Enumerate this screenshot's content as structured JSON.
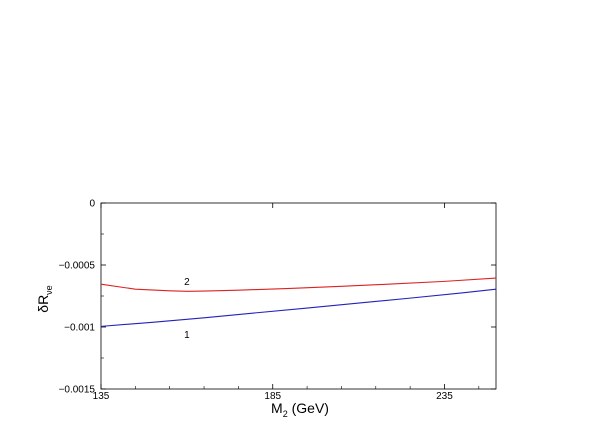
{
  "chart_data": {
    "type": "line",
    "title": "",
    "xlabel": "M",
    "xlabel_sub": "2",
    "xlabel_suffix": " (GeV)",
    "ylabel": "δR",
    "ylabel_sub": "νe",
    "xlim": [
      135,
      250
    ],
    "ylim": [
      -0.0015,
      0
    ],
    "grid": false,
    "x_ticks": [
      {
        "value": 135,
        "label": "135"
      },
      {
        "value": 185,
        "label": "185"
      },
      {
        "value": 235,
        "label": "235"
      }
    ],
    "y_ticks": [
      {
        "value": 0,
        "label": "0"
      },
      {
        "value": -0.0005,
        "label": "−0.0005"
      },
      {
        "value": -0.001,
        "label": "−0.001"
      },
      {
        "value": -0.0015,
        "label": "−0.0015"
      }
    ],
    "series": [
      {
        "label": "1",
        "label_at": [
          160,
          -0.00106
        ],
        "color": "#2222bb",
        "x": [
          135,
          150,
          165,
          180,
          195,
          210,
          225,
          240,
          250
        ],
        "y": [
          -0.000995,
          -0.000962,
          -0.000926,
          -0.000886,
          -0.000847,
          -0.000807,
          -0.000767,
          -0.000725,
          -0.000695
        ]
      },
      {
        "label": "2",
        "label_at": [
          160,
          -0.000635
        ],
        "color": "#dd2222",
        "x": [
          135,
          145,
          155,
          160,
          165,
          175,
          190,
          205,
          220,
          235,
          250
        ],
        "y": [
          -0.000655,
          -0.000695,
          -0.000708,
          -0.000712,
          -0.00071,
          -0.000703,
          -0.000689,
          -0.000672,
          -0.000653,
          -0.000632,
          -0.000605
        ]
      }
    ]
  }
}
